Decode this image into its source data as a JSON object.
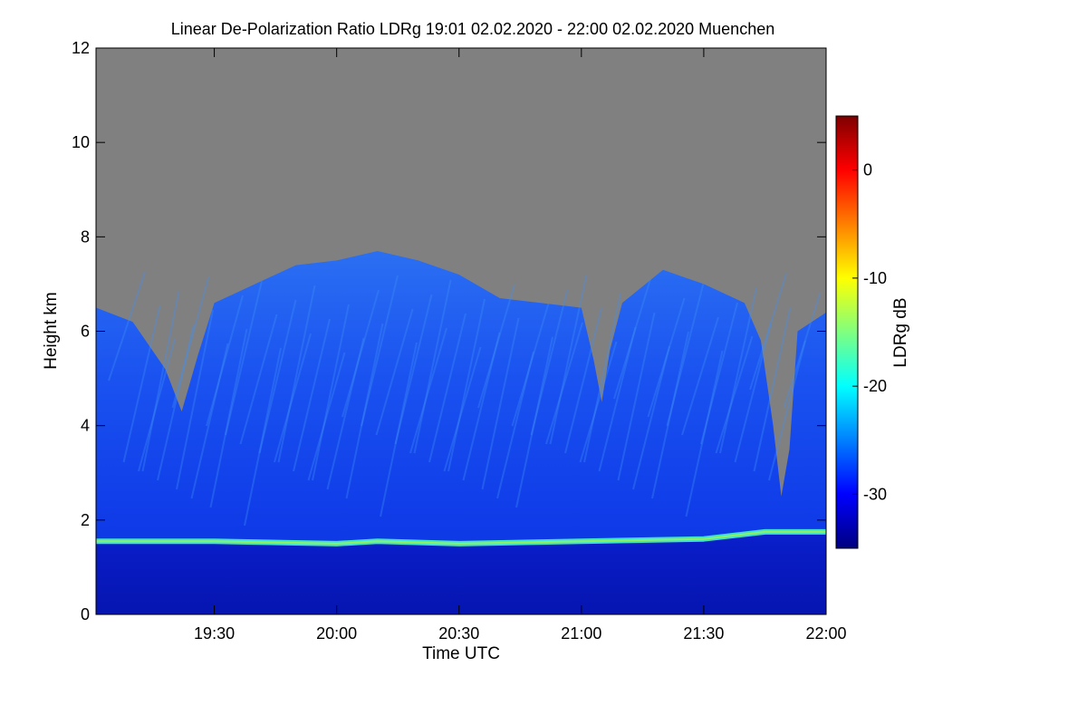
{
  "chart_data": {
    "type": "heatmap",
    "title": "Linear De-Polarization Ratio LDRg   19:01 02.02.2020 - 22:00 02.02.2020 Muenchen",
    "xlabel": "Time UTC",
    "ylabel": "Height km",
    "colorbar_label": "LDRg dB",
    "xlim": [
      "19:01",
      "22:00"
    ],
    "ylim": [
      0,
      12
    ],
    "x_ticks": [
      "19:30",
      "20:00",
      "20:30",
      "21:00",
      "21:30",
      "22:00"
    ],
    "y_ticks": [
      "0",
      "2",
      "4",
      "6",
      "8",
      "10",
      "12"
    ],
    "colorbar_range": [
      -35,
      5
    ],
    "colorbar_ticks": [
      "0",
      "-10",
      "-20",
      "-30"
    ],
    "colorscale": "jet",
    "no_signal_color": "#808080",
    "cloud_top_km": [
      [
        "19:01",
        6.5
      ],
      [
        "19:10",
        6.2
      ],
      [
        "19:18",
        5.2
      ],
      [
        "19:22",
        4.3
      ],
      [
        "19:26",
        5.5
      ],
      [
        "19:30",
        6.6
      ],
      [
        "19:40",
        7.0
      ],
      [
        "19:50",
        7.4
      ],
      [
        "20:00",
        7.5
      ],
      [
        "20:10",
        7.7
      ],
      [
        "20:20",
        7.5
      ],
      [
        "20:30",
        7.2
      ],
      [
        "20:40",
        6.7
      ],
      [
        "20:50",
        6.6
      ],
      [
        "21:00",
        6.5
      ],
      [
        "21:03",
        5.4
      ],
      [
        "21:05",
        4.5
      ],
      [
        "21:07",
        5.6
      ],
      [
        "21:10",
        6.6
      ],
      [
        "21:20",
        7.3
      ],
      [
        "21:30",
        7.0
      ],
      [
        "21:40",
        6.6
      ],
      [
        "21:44",
        5.8
      ],
      [
        "21:47",
        4.0
      ],
      [
        "21:49",
        2.5
      ],
      [
        "21:51",
        3.5
      ],
      [
        "21:53",
        6.0
      ],
      [
        "22:00",
        6.4
      ]
    ],
    "boundary_layer_top_km": [
      [
        "19:01",
        1.55
      ],
      [
        "19:30",
        1.55
      ],
      [
        "20:00",
        1.5
      ],
      [
        "20:10",
        1.55
      ],
      [
        "20:30",
        1.5
      ],
      [
        "21:00",
        1.55
      ],
      [
        "21:30",
        1.6
      ],
      [
        "21:45",
        1.75
      ],
      [
        "21:50",
        1.75
      ],
      [
        "22:00",
        1.75
      ]
    ]
  }
}
